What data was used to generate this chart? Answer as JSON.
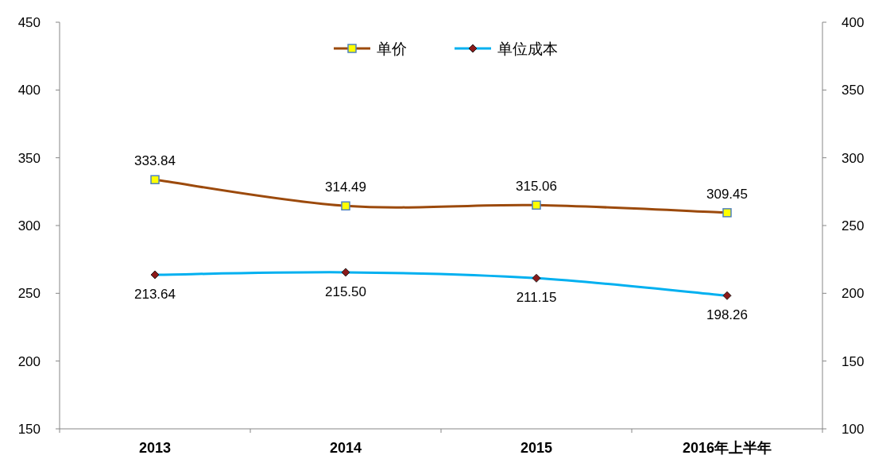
{
  "chart_data": {
    "type": "line",
    "categories": [
      "2013",
      "2014",
      "2015",
      "2016年上半年"
    ],
    "series": [
      {
        "name": "单价",
        "color": "#9c4a0c",
        "marker": "square",
        "values": [
          333.84,
          314.49,
          315.06,
          309.45
        ],
        "value_labels": [
          "333.84",
          "314.49",
          "315.06",
          "309.45"
        ]
      },
      {
        "name": "单位成本",
        "color": "#00b0f0",
        "marker": "diamond",
        "axis": "y2",
        "values": [
          213.64,
          215.5,
          211.15,
          198.26
        ],
        "value_labels": [
          "213.64",
          "215.50",
          "211.15",
          "198.26"
        ]
      }
    ],
    "ylim": [
      150,
      450
    ],
    "yticks": [
      150,
      200,
      250,
      300,
      350,
      400,
      450
    ],
    "y2lim": [
      100,
      400
    ],
    "y2ticks": [
      100,
      150,
      200,
      250,
      300,
      350,
      400
    ],
    "legend": "top",
    "grid": false,
    "line_style": "solid"
  }
}
